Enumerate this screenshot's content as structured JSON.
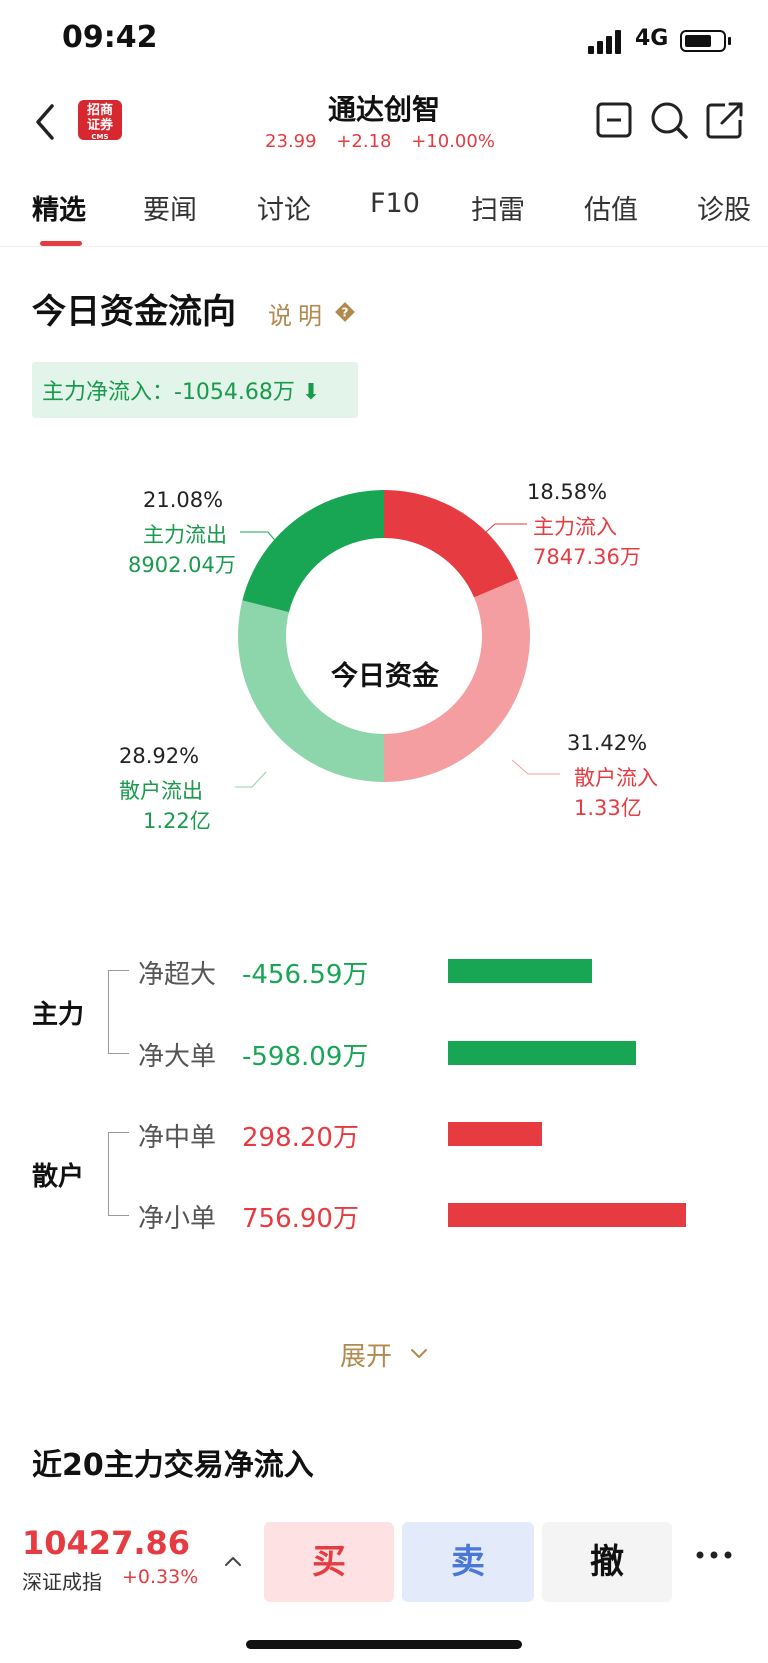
{
  "status": {
    "time": "09:42",
    "network": "4G"
  },
  "header": {
    "logo_line1": "招商",
    "logo_line2": "证券",
    "logo_sub": "CMS",
    "stock_name": "通达创智",
    "price": "23.99",
    "change": "+2.18",
    "change_pct": "+10.00%"
  },
  "tabs": [
    {
      "label": "精选",
      "active": true
    },
    {
      "label": "要闻"
    },
    {
      "label": "讨论"
    },
    {
      "label": "F10"
    },
    {
      "label": "扫雷"
    },
    {
      "label": "估值"
    },
    {
      "label": "诊股"
    }
  ],
  "fund_flow": {
    "title": "今日资金流向",
    "explain": "说明",
    "net_inflow": "主力净流入：-1054.68万 ⬇",
    "center_label": "今日资金",
    "segments": [
      {
        "name": "主力流入",
        "pct": 18.58,
        "pct_label": "18.58%",
        "amount": "7847.36万",
        "color": "#e63c41"
      },
      {
        "name": "散户流入",
        "pct": 31.42,
        "pct_label": "31.42%",
        "amount": "1.33亿",
        "color": "#f49ea2"
      },
      {
        "name": "散户流出",
        "pct": 28.92,
        "pct_label": "28.92%",
        "amount": "1.22亿",
        "color": "#8dd5ab"
      },
      {
        "name": "主力流出",
        "pct": 21.08,
        "pct_label": "21.08%",
        "amount": "8902.04万",
        "color": "#18a554"
      }
    ]
  },
  "breakdown": {
    "groups": [
      {
        "label": "主力"
      },
      {
        "label": "散户"
      }
    ],
    "rows": [
      {
        "label": "净超大",
        "value": "-456.59万",
        "amount": -456.59
      },
      {
        "label": "净大单",
        "value": "-598.09万",
        "amount": -598.09
      },
      {
        "label": "净中单",
        "value": "298.20万",
        "amount": 298.2
      },
      {
        "label": "净小单",
        "value": "756.90万",
        "amount": 756.9
      }
    ]
  },
  "expand_label": "展开",
  "section2_title": "近20主力交易净流入",
  "bottom": {
    "index_value": "10427.86",
    "index_name": "深证成指",
    "index_change": "+0.33%",
    "buy": "买",
    "sell": "卖",
    "cancel": "撤"
  },
  "colors": {
    "up": "#e63c41",
    "down": "#18a554",
    "accent": "#b08a4e"
  }
}
